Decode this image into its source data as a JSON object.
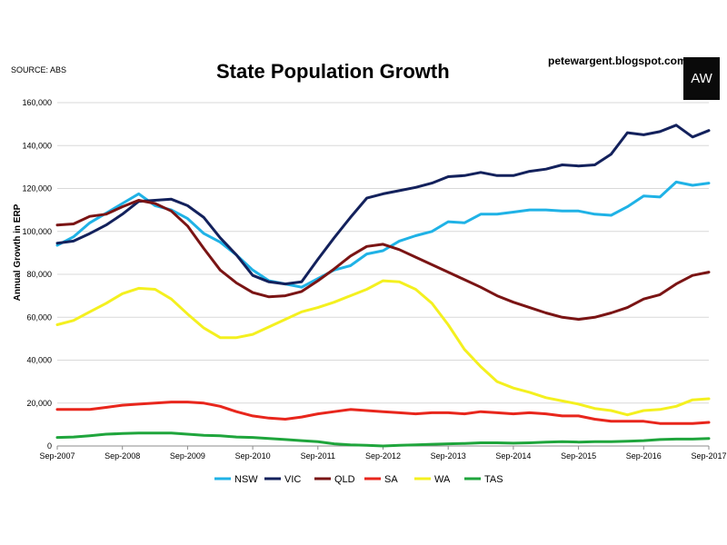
{
  "source_label": "SOURCE: ABS",
  "site_label": "petewargent.blogspot.com",
  "logo_text": "AW",
  "chart_data": {
    "type": "line",
    "title": "State Population Growth",
    "xlabel": "",
    "ylabel": "Annual Growth in ERP",
    "ylim": [
      0,
      160000
    ],
    "yticks": [
      0,
      20000,
      40000,
      60000,
      80000,
      100000,
      120000,
      140000,
      160000
    ],
    "ytick_labels": [
      "0",
      "20,000",
      "40,000",
      "60,000",
      "80,000",
      "100,000",
      "120,000",
      "140,000",
      "160,000"
    ],
    "xtick_labels": [
      "Sep-2007",
      "Sep-2008",
      "Sep-2009",
      "Sep-2010",
      "Sep-2011",
      "Sep-2012",
      "Sep-2013",
      "Sep-2014",
      "Sep-2015",
      "Sep-2016",
      "Sep-2017"
    ],
    "x_start": "Sep-2007",
    "x_end": "Sep-2017",
    "grid": true,
    "legend_position": "bottom",
    "series": [
      {
        "name": "NSW",
        "color": "#1fb2e6",
        "values": [
          93500,
          97500,
          104000,
          108500,
          113000,
          117500,
          112000,
          110000,
          106000,
          99000,
          95000,
          89000,
          82000,
          77000,
          75500,
          74000,
          78000,
          82000,
          84000,
          89500,
          91000,
          95500,
          98000,
          100000,
          104500,
          104000,
          108000,
          108000,
          109000,
          110000,
          110000,
          109500,
          109500,
          108000,
          107500,
          111500,
          116500,
          116000,
          123000,
          121500,
          122500
        ]
      },
      {
        "name": "VIC",
        "color": "#13215c",
        "values": [
          94500,
          95500,
          99000,
          103000,
          108000,
          114000,
          114500,
          115000,
          112000,
          106500,
          97000,
          89000,
          79500,
          76500,
          75500,
          76500,
          87000,
          97000,
          106500,
          115500,
          117500,
          119000,
          120500,
          122500,
          125500,
          126000,
          127500,
          126000,
          126000,
          128000,
          129000,
          131000,
          130500,
          131000,
          136000,
          146000,
          145000,
          146500,
          149500,
          144000,
          147000
        ]
      },
      {
        "name": "QLD",
        "color": "#7a1414",
        "values": [
          103000,
          103500,
          107000,
          108000,
          111500,
          114500,
          113000,
          109500,
          102500,
          92000,
          82000,
          76000,
          71500,
          69500,
          70000,
          72000,
          77000,
          82500,
          88500,
          93000,
          94000,
          91500,
          88000,
          84500,
          81000,
          77500,
          74000,
          70000,
          67000,
          64500,
          62000,
          60000,
          59000,
          60000,
          62000,
          64500,
          68500,
          70500,
          75500,
          79500,
          81000
        ]
      },
      {
        "name": "SA",
        "color": "#e8261c",
        "values": [
          17000,
          17000,
          17000,
          18000,
          19000,
          19500,
          20000,
          20500,
          20500,
          20000,
          18500,
          16000,
          14000,
          13000,
          12500,
          13500,
          15000,
          16000,
          17000,
          16500,
          16000,
          15500,
          15000,
          15500,
          15500,
          15000,
          16000,
          15500,
          15000,
          15500,
          15000,
          14000,
          14000,
          12500,
          11500,
          11500,
          11500,
          10500,
          10500,
          10500,
          11000
        ]
      },
      {
        "name": "WA",
        "color": "#f4f01f",
        "values": [
          56500,
          58500,
          62500,
          66500,
          71000,
          73500,
          73000,
          68500,
          61500,
          55000,
          50500,
          50500,
          52000,
          55500,
          59000,
          62500,
          64500,
          67000,
          70000,
          73000,
          77000,
          76500,
          73000,
          66500,
          56500,
          45000,
          37000,
          30000,
          27000,
          25000,
          22500,
          21000,
          19500,
          17500,
          16500,
          14500,
          16500,
          17000,
          18500,
          21500,
          22000
        ]
      },
      {
        "name": "TAS",
        "color": "#1fa53c",
        "values": [
          4000,
          4200,
          4800,
          5500,
          5800,
          6000,
          6000,
          6000,
          5500,
          5000,
          4800,
          4200,
          4000,
          3500,
          3000,
          2500,
          2000,
          1000,
          500,
          300,
          0,
          300,
          500,
          800,
          1000,
          1200,
          1500,
          1500,
          1300,
          1500,
          1800,
          2000,
          1800,
          2000,
          2000,
          2200,
          2500,
          3000,
          3200,
          3200,
          3500
        ]
      }
    ]
  }
}
